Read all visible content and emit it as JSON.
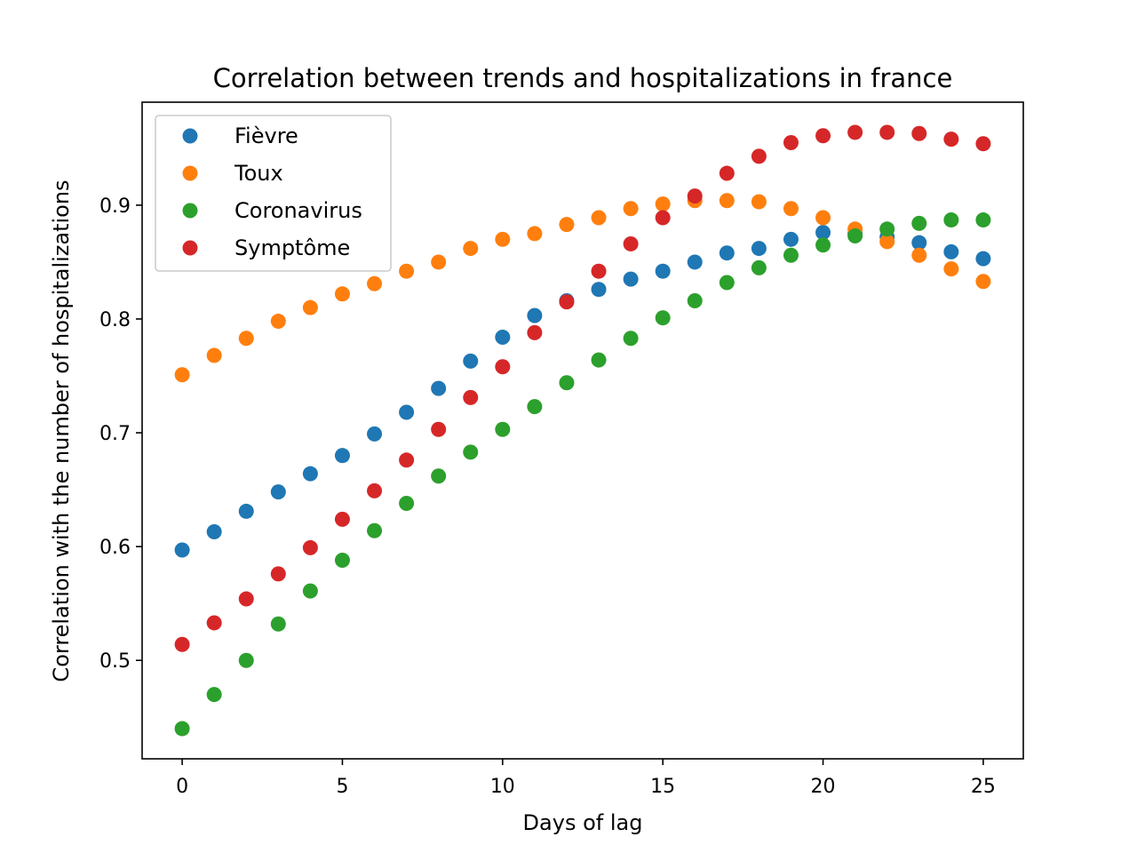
{
  "chart_data": {
    "type": "scatter",
    "title": "Correlation between trends and hospitalizations in france",
    "xlabel": "Days of lag",
    "ylabel": "Correlation with the number of hospitalizations",
    "xlim": [
      -1.25,
      26.25
    ],
    "ylim": [
      0.4135,
      0.9905
    ],
    "xticks": [
      0,
      5,
      10,
      15,
      20,
      25
    ],
    "xtick_labels": [
      "0",
      "5",
      "10",
      "15",
      "20",
      "25"
    ],
    "yticks": [
      0.5,
      0.6,
      0.7,
      0.8,
      0.9
    ],
    "ytick_labels": [
      "0.5",
      "0.6",
      "0.7",
      "0.8",
      "0.9"
    ],
    "grid": false,
    "legend_position": "top-left",
    "x": [
      0,
      1,
      2,
      3,
      4,
      5,
      6,
      7,
      8,
      9,
      10,
      11,
      12,
      13,
      14,
      15,
      16,
      17,
      18,
      19,
      20,
      21,
      22,
      23,
      24,
      25
    ],
    "series": [
      {
        "name": "Fièvre",
        "color": "#1f77b4",
        "values": [
          0.597,
          0.613,
          0.631,
          0.648,
          0.664,
          0.68,
          0.699,
          0.718,
          0.739,
          0.763,
          0.784,
          0.803,
          0.816,
          0.826,
          0.835,
          0.842,
          0.85,
          0.858,
          0.862,
          0.87,
          0.876,
          0.875,
          0.872,
          0.867,
          0.859,
          0.853
        ]
      },
      {
        "name": "Toux",
        "color": "#ff7f0e",
        "values": [
          0.751,
          0.768,
          0.783,
          0.798,
          0.81,
          0.822,
          0.831,
          0.842,
          0.85,
          0.862,
          0.87,
          0.875,
          0.883,
          0.889,
          0.897,
          0.901,
          0.904,
          0.904,
          0.903,
          0.897,
          0.889,
          0.879,
          0.868,
          0.856,
          0.844,
          0.833
        ]
      },
      {
        "name": "Coronavirus",
        "color": "#2ca02c",
        "values": [
          0.44,
          0.47,
          0.5,
          0.532,
          0.561,
          0.588,
          0.614,
          0.638,
          0.662,
          0.683,
          0.703,
          0.723,
          0.744,
          0.764,
          0.783,
          0.801,
          0.816,
          0.832,
          0.845,
          0.856,
          0.865,
          0.873,
          0.879,
          0.884,
          0.887,
          0.887
        ]
      },
      {
        "name": "Symptôme",
        "color": "#d62728",
        "values": [
          0.514,
          0.533,
          0.554,
          0.576,
          0.599,
          0.624,
          0.649,
          0.676,
          0.703,
          0.731,
          0.758,
          0.788,
          0.815,
          0.842,
          0.866,
          0.889,
          0.908,
          0.928,
          0.943,
          0.955,
          0.961,
          0.964,
          0.964,
          0.963,
          0.958,
          0.954
        ]
      }
    ]
  }
}
